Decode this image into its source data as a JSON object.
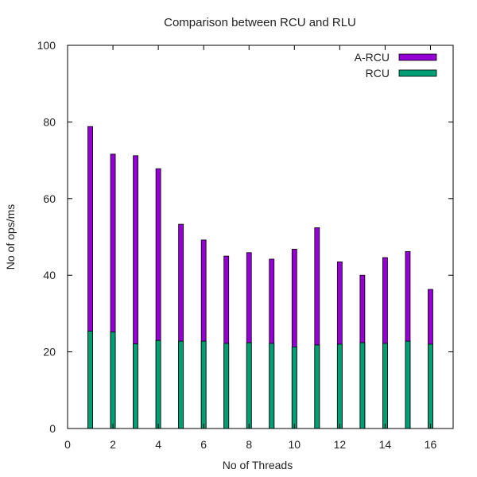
{
  "chart_data": {
    "type": "bar",
    "title": "Comparison between RCU and RLU",
    "xlabel": "No of Threads",
    "ylabel": "No of ops/ms",
    "xlim": [
      0,
      17
    ],
    "ylim": [
      0,
      100
    ],
    "x_ticks": [
      0,
      2,
      4,
      6,
      8,
      10,
      12,
      14,
      16
    ],
    "y_ticks": [
      0,
      20,
      40,
      60,
      80,
      100
    ],
    "grid": false,
    "legend_position": "top-right",
    "stacked": false,
    "x": [
      1,
      2,
      3,
      4,
      5,
      6,
      7,
      8,
      9,
      10,
      11,
      12,
      13,
      14,
      15,
      16
    ],
    "series": [
      {
        "name": "A-RCU",
        "color": "#9400d3",
        "values": [
          78.8,
          71.6,
          71.2,
          67.8,
          53.3,
          49.2,
          45.0,
          45.9,
          44.2,
          46.8,
          52.4,
          43.5,
          40.0,
          44.6,
          46.2,
          36.3
        ]
      },
      {
        "name": "RCU",
        "color": "#009e73",
        "values": [
          25.4,
          25.2,
          22.1,
          23.0,
          22.8,
          22.8,
          22.2,
          22.4,
          22.2,
          21.3,
          21.8,
          22.0,
          22.4,
          22.2,
          22.8,
          22.0
        ]
      }
    ]
  }
}
